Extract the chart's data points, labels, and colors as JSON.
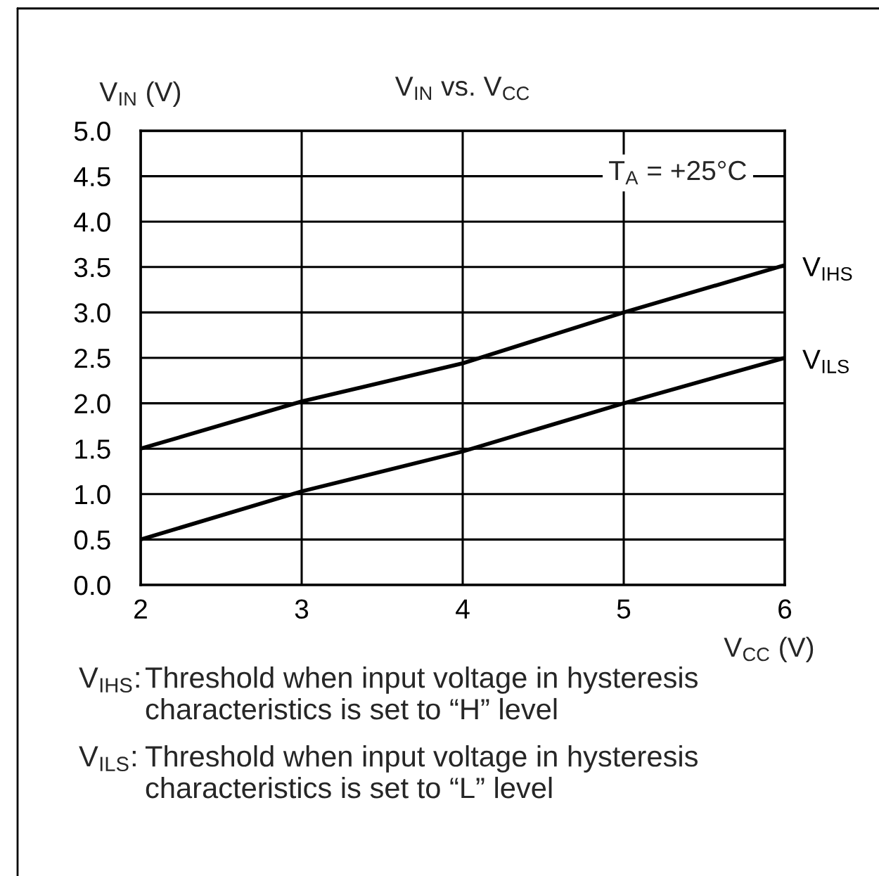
{
  "chart_data": {
    "type": "line",
    "title": "V$_{IN}$ vs. V$_{CC}$",
    "xlabel": "V$_{CC}$ (V)",
    "ylabel": "V$_{IN}$ (V)",
    "x": [
      2,
      3,
      4,
      5,
      6
    ],
    "series": [
      {
        "name": "V$_{IHS}$",
        "color": "#000000",
        "values": [
          1.5,
          2.02,
          2.44,
          3.0,
          3.52
        ]
      },
      {
        "name": "V$_{ILS}$",
        "color": "#000000",
        "values": [
          0.5,
          1.03,
          1.47,
          2.0,
          2.5
        ]
      }
    ],
    "xlim": [
      2,
      6
    ],
    "xticks": [
      2,
      3,
      4,
      5,
      6
    ],
    "ylim": [
      0,
      5
    ],
    "yticks": [
      {
        "value": 0,
        "label": "0.0"
      },
      {
        "value": 0.5,
        "label": "0.5"
      },
      {
        "value": 1,
        "label": "1.0"
      },
      {
        "value": 1.5,
        "label": "1.5"
      },
      {
        "value": 2,
        "label": "2.0"
      },
      {
        "value": 2.5,
        "label": "2.5"
      },
      {
        "value": 3,
        "label": "3.0"
      },
      {
        "value": 3.5,
        "label": "3.5"
      },
      {
        "value": 4,
        "label": "4.0"
      },
      {
        "value": 4.5,
        "label": "4.5"
      },
      {
        "value": 5,
        "label": "5.0"
      }
    ],
    "grid": true,
    "annotations": [
      "T$_{A}$ = +25°C",
      "V$_{IHS}$: Threshold when input voltage in hysteresis\ncharacteristics is set to “H” level",
      "V$_{ILS}$: Threshold when input voltage in hysteresis\ncharacteristics is set to “L” level"
    ]
  }
}
